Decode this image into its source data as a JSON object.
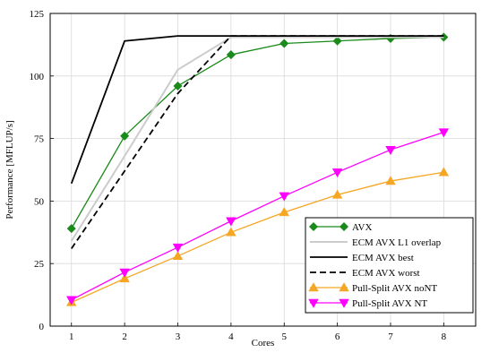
{
  "chart_data": {
    "type": "line",
    "title": "",
    "xlabel": "Cores",
    "ylabel": "Performance [MFLUP/s]",
    "xlim": [
      0.6,
      8.6
    ],
    "ylim": [
      0,
      125
    ],
    "x_ticks": [
      1,
      2,
      3,
      4,
      5,
      6,
      7,
      8
    ],
    "y_ticks": [
      0,
      25,
      50,
      75,
      100,
      125
    ],
    "grid": true,
    "legend_position": "bottom-right",
    "series": [
      {
        "name": "AVX",
        "color": "#1a8a1a",
        "dash": "solid",
        "marker": "diamond",
        "x": [
          1,
          2,
          3,
          4,
          5,
          6,
          7,
          8
        ],
        "y": [
          39,
          76,
          96,
          108.5,
          113,
          114,
          115,
          115.5
        ]
      },
      {
        "name": "ECM AVX L1 overlap",
        "color": "#cccccc",
        "dash": "solid",
        "marker": "none",
        "x": [
          1,
          2,
          3,
          4,
          5,
          6,
          7,
          8
        ],
        "y": [
          34,
          68,
          102.5,
          115.5,
          115.5,
          115.5,
          115.5,
          115.5
        ]
      },
      {
        "name": "ECM AVX best",
        "color": "#000000",
        "dash": "solid",
        "marker": "none",
        "x": [
          1,
          2,
          3,
          4,
          5,
          6,
          7,
          8
        ],
        "y": [
          57,
          114,
          116,
          116,
          116,
          116,
          116,
          116
        ]
      },
      {
        "name": "ECM AVX worst",
        "color": "#000000",
        "dash": "dashed",
        "marker": "none",
        "x": [
          1,
          2,
          3,
          4,
          5,
          6,
          7,
          8
        ],
        "y": [
          31,
          62,
          93,
          116,
          116,
          116,
          116,
          116
        ]
      },
      {
        "name": "Pull-Split AVX noNT",
        "color": "#f5a623",
        "dash": "solid",
        "marker": "triangle-up",
        "x": [
          1,
          2,
          3,
          4,
          5,
          6,
          7,
          8
        ],
        "y": [
          9.5,
          19,
          28,
          37.5,
          45.5,
          52.5,
          58,
          61.5
        ]
      },
      {
        "name": "Pull-Split AVX NT",
        "color": "#ff00ff",
        "dash": "solid",
        "marker": "triangle-down",
        "x": [
          1,
          2,
          3,
          4,
          5,
          6,
          7,
          8
        ],
        "y": [
          10.5,
          21.5,
          31.5,
          42,
          52,
          61.5,
          70.5,
          77.5
        ]
      }
    ]
  }
}
